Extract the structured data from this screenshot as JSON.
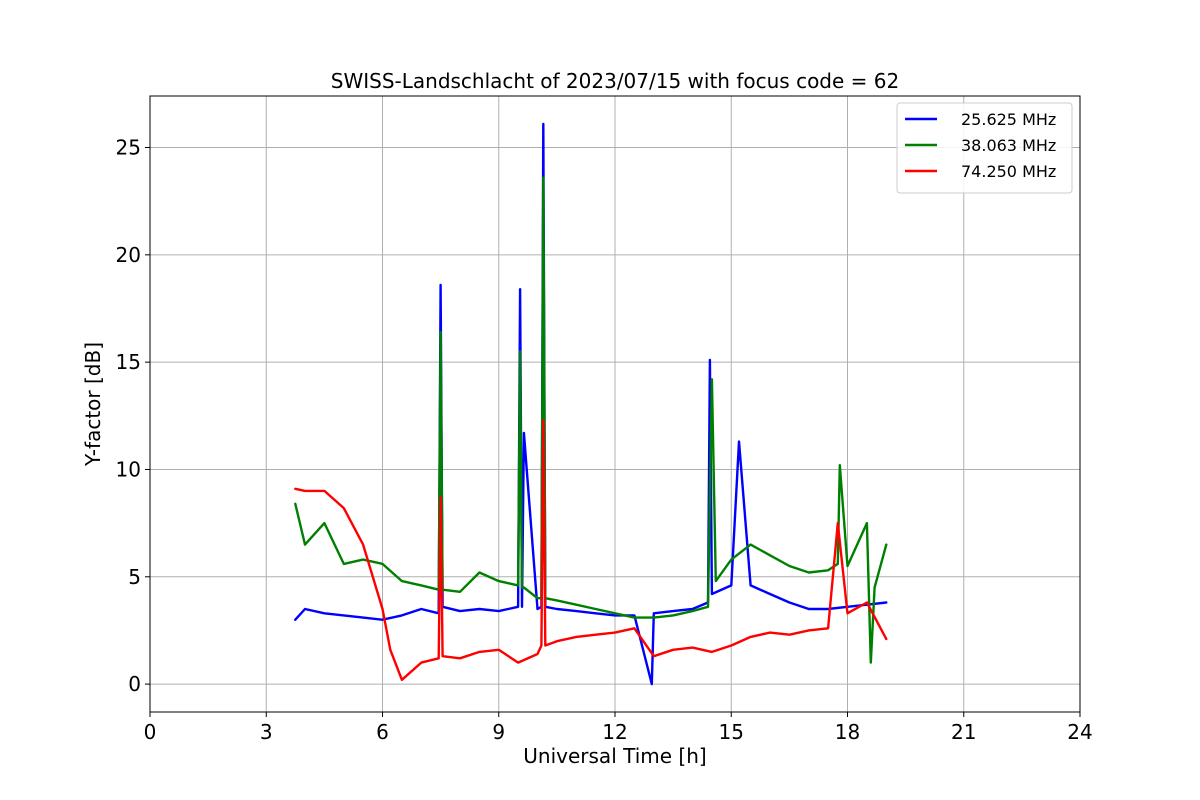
{
  "chart_data": {
    "type": "line",
    "title": "SWISS-Landschlacht of 2023/07/15 with focus code = 62",
    "xlabel": "Universal Time [h]",
    "ylabel": "Y-factor [dB]",
    "xlim": [
      0,
      24
    ],
    "ylim": [
      -1.3,
      27.4
    ],
    "xticks": [
      0,
      3,
      6,
      9,
      12,
      15,
      18,
      21,
      24
    ],
    "yticks": [
      0,
      5,
      10,
      15,
      20,
      25
    ],
    "grid": true,
    "legend_position": "top-right",
    "series": [
      {
        "name": "25.625 MHz",
        "color": "#0000ff",
        "x": [
          3.75,
          4.0,
          4.5,
          5.0,
          5.5,
          6.0,
          6.5,
          7.0,
          7.45,
          7.5,
          7.55,
          8.0,
          8.5,
          9.0,
          9.5,
          9.55,
          9.6,
          9.65,
          10.0,
          10.1,
          10.15,
          10.2,
          10.5,
          11.0,
          11.5,
          12.0,
          12.5,
          12.95,
          13.0,
          13.5,
          14.0,
          14.4,
          14.45,
          14.5,
          15.0,
          15.2,
          15.5,
          16.0,
          16.5,
          17.0,
          17.5,
          18.0,
          18.5,
          19.0
        ],
        "y": [
          3.0,
          3.5,
          3.3,
          3.2,
          3.1,
          3.0,
          3.2,
          3.5,
          3.3,
          18.6,
          3.6,
          3.4,
          3.5,
          3.4,
          3.6,
          18.4,
          3.6,
          11.7,
          3.5,
          3.6,
          26.1,
          3.6,
          3.5,
          3.4,
          3.3,
          3.2,
          3.2,
          0.0,
          3.3,
          3.4,
          3.5,
          3.8,
          15.1,
          4.2,
          4.6,
          11.3,
          4.6,
          4.2,
          3.8,
          3.5,
          3.5,
          3.6,
          3.7,
          3.8
        ]
      },
      {
        "name": "38.063 MHz",
        "color": "#008000",
        "x": [
          3.75,
          4.0,
          4.5,
          5.0,
          5.5,
          6.0,
          6.5,
          7.0,
          7.45,
          7.5,
          7.55,
          8.0,
          8.5,
          9.0,
          9.5,
          9.55,
          9.6,
          9.65,
          10.0,
          10.1,
          10.15,
          10.2,
          10.5,
          11.0,
          11.5,
          12.0,
          12.5,
          13.0,
          13.5,
          14.0,
          14.4,
          14.5,
          14.6,
          15.0,
          15.5,
          16.0,
          16.5,
          17.0,
          17.5,
          17.75,
          17.8,
          18.0,
          18.5,
          18.6,
          18.7,
          19.0
        ],
        "y": [
          8.4,
          6.5,
          7.5,
          5.6,
          5.8,
          5.6,
          4.8,
          4.6,
          4.4,
          16.4,
          4.4,
          4.3,
          5.2,
          4.8,
          4.6,
          15.5,
          4.5,
          4.5,
          4.0,
          4.0,
          23.6,
          4.0,
          3.9,
          3.7,
          3.5,
          3.3,
          3.1,
          3.1,
          3.2,
          3.4,
          3.6,
          14.2,
          4.8,
          5.8,
          6.5,
          6.0,
          5.5,
          5.2,
          5.3,
          5.6,
          10.2,
          5.5,
          7.5,
          1.0,
          4.5,
          6.5
        ]
      },
      {
        "name": "74.250 MHz",
        "color": "#ff0000",
        "x": [
          3.75,
          4.0,
          4.5,
          5.0,
          5.5,
          6.0,
          6.2,
          6.5,
          7.0,
          7.45,
          7.5,
          7.55,
          8.0,
          8.5,
          9.0,
          9.5,
          10.0,
          10.1,
          10.15,
          10.2,
          10.5,
          11.0,
          11.5,
          12.0,
          12.5,
          13.0,
          13.5,
          14.0,
          14.5,
          15.0,
          15.5,
          16.0,
          16.5,
          17.0,
          17.5,
          17.75,
          18.0,
          18.5,
          19.0
        ],
        "y": [
          9.1,
          9.0,
          9.0,
          8.2,
          6.5,
          3.5,
          1.6,
          0.2,
          1.0,
          1.2,
          8.7,
          1.3,
          1.2,
          1.5,
          1.6,
          1.0,
          1.4,
          1.8,
          12.3,
          1.8,
          2.0,
          2.2,
          2.3,
          2.4,
          2.6,
          1.3,
          1.6,
          1.7,
          1.5,
          1.8,
          2.2,
          2.4,
          2.3,
          2.5,
          2.6,
          7.5,
          3.3,
          3.8,
          2.1
        ]
      }
    ]
  }
}
